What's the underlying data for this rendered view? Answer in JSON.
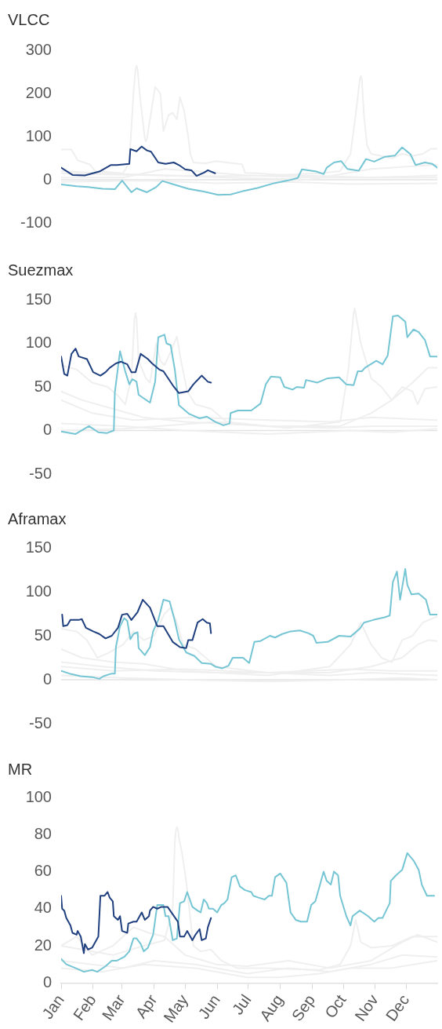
{
  "chart_data": [
    {
      "type": "line",
      "title": "VLCC",
      "xlim": [
        "--01-01",
        "--12-31"
      ],
      "ylim": [
        -100,
        300
      ],
      "yticks": [
        -100,
        0,
        100,
        200,
        300
      ],
      "tick_labels": "y",
      "ref_lines": [
        {
          "axis": "y",
          "value": 0,
          "color": "#e3e3e3"
        }
      ],
      "grid": false,
      "legend": false,
      "marker": "none",
      "series": [
        {
          "color": "#efefef",
          "x": [
            "--01-01",
            "--01-11",
            "--01-17",
            "--01-29",
            "--02-03",
            "--03-02",
            "--03-08",
            "--03-12",
            "--03-14",
            "--03-15",
            "--03-16",
            "--03-18",
            "--03-23",
            "--03-24",
            "--03-25",
            "--03-30",
            "--04-02",
            "--04-07",
            "--04-10",
            "--04-15",
            "--04-19",
            "--04-23",
            "--04-26",
            "--04-30",
            "--05-04",
            "--05-06",
            "--05-09",
            "--05-21",
            "--05-31",
            "--06-10",
            "--06-25",
            "--06-28",
            "--07-10",
            "--08-09",
            "--09-18",
            "--10-28",
            "--12-31"
          ],
          "values": [
            70,
            70,
            45,
            35,
            20,
            15,
            40,
            200,
            255,
            264,
            256,
            200,
            95,
            89,
            95,
            170,
            215,
            200,
            113,
            150,
            155,
            140,
            191,
            160,
            100,
            60,
            40,
            38,
            43,
            40,
            36,
            16,
            15,
            10,
            8,
            5,
            5
          ]
        },
        {
          "color": "#efefef",
          "x": [
            "--01-01",
            "--02-20",
            "--04-11",
            "--05-31",
            "--07-20",
            "--09-08",
            "--09-28",
            "--10-08",
            "--10-13",
            "--10-17",
            "--10-18",
            "--10-19",
            "--10-21",
            "--10-24",
            "--10-28",
            "--11-07",
            "--11-17",
            "--11-27",
            "--12-07",
            "--12-17",
            "--12-25",
            "--12-31"
          ],
          "values": [
            15,
            12,
            10,
            8,
            10,
            15,
            20,
            60,
            150,
            232,
            240,
            232,
            150,
            80,
            60,
            55,
            50,
            60,
            55,
            60,
            72,
            72
          ]
        },
        {
          "color": "#efefef",
          "x": [
            "--01-01",
            "--03-02",
            "--04-11",
            "--05-11",
            "--06-30",
            "--08-29",
            "--10-28",
            "--12-31"
          ],
          "values": [
            5,
            5,
            25,
            20,
            10,
            5,
            5,
            10
          ]
        },
        {
          "color": "#efefef",
          "x": [
            "--01-01",
            "--03-22",
            "--05-31",
            "--08-09",
            "--10-08",
            "--12-31"
          ],
          "values": [
            -5,
            -2,
            -8,
            -5,
            -10,
            -8
          ]
        },
        {
          "color": "#efefef",
          "x": [
            "--01-01",
            "--02-10",
            "--04-11",
            "--06-10",
            "--08-29",
            "--10-28",
            "--12-31"
          ],
          "values": [
            20,
            15,
            10,
            5,
            0,
            25,
            35
          ]
        },
        {
          "color": "#75c5d4",
          "x": [
            "--01-01",
            "--01-16",
            "--01-27",
            "--02-10",
            "--02-22",
            "--03-01",
            "--03-10",
            "--03-15",
            "--03-25",
            "--04-03",
            "--04-09",
            "--04-20",
            "--05-04",
            "--05-18",
            "--06-02",
            "--06-14",
            "--06-25",
            "--07-10",
            "--07-26",
            "--08-08",
            "--08-18",
            "--08-22",
            "--09-05",
            "--09-12",
            "--09-15",
            "--09-22",
            "--09-29",
            "--10-05",
            "--10-16",
            "--10-23",
            "--10-31",
            "--11-10",
            "--11-20",
            "--11-27",
            "--12-05",
            "--12-10",
            "--12-19",
            "--12-26",
            "--12-31"
          ],
          "values": [
            -11,
            -15,
            -17,
            -21,
            -22,
            -2,
            -29,
            -20,
            -29,
            -17,
            -3,
            -11,
            -21,
            -27,
            -35,
            -34,
            -27,
            -19,
            -8,
            -2,
            4,
            24,
            19,
            13,
            28,
            40,
            43,
            25,
            21,
            48,
            42,
            53,
            56,
            75,
            59,
            34,
            40,
            37,
            28
          ]
        },
        {
          "color": "#1f3f7f",
          "x": [
            "--01-01",
            "--01-12",
            "--01-24",
            "--02-07",
            "--02-18",
            "--02-24",
            "--03-08",
            "--03-09",
            "--03-15",
            "--03-19",
            "--03-20",
            "--03-21",
            "--03-25",
            "--03-29",
            "--04-05",
            "--04-12",
            "--04-20",
            "--04-25",
            "--05-01",
            "--05-07",
            "--05-12",
            "--05-19",
            "--05-23",
            "--05-30"
          ],
          "values": [
            28,
            11,
            10,
            19,
            34,
            34,
            37,
            71,
            66,
            75,
            77,
            75,
            68,
            65,
            40,
            37,
            40,
            34,
            24,
            22,
            9,
            16,
            22,
            15
          ]
        }
      ]
    },
    {
      "type": "line",
      "title": "Suezmax",
      "xlim": [
        "--01-01",
        "--12-31"
      ],
      "ylim": [
        -50,
        150
      ],
      "yticks": [
        -50,
        0,
        50,
        100,
        150
      ],
      "tick_labels": "y",
      "ref_lines": [
        {
          "axis": "y",
          "value": 0,
          "color": "#e3e3e3"
        }
      ],
      "grid": false,
      "legend": false,
      "marker": "none",
      "series": [
        {
          "color": "#efefef",
          "x": [
            "--01-01",
            "--01-16",
            "--01-31",
            "--02-15",
            "--02-25",
            "--03-04",
            "--03-10",
            "--03-13",
            "--03-14",
            "--03-15",
            "--03-17",
            "--03-24",
            "--03-28",
            "--04-03",
            "--04-07",
            "--04-11",
            "--04-17",
            "--04-23",
            "--04-27",
            "--05-03",
            "--05-11",
            "--05-26",
            "--06-10",
            "--07-20",
            "--09-18",
            "--10-28",
            "--12-31"
          ],
          "values": [
            75,
            70,
            55,
            50,
            40,
            30,
            60,
            128,
            135,
            128,
            80,
            60,
            55,
            100,
            80,
            75,
            90,
            108,
            80,
            45,
            30,
            25,
            10,
            5,
            3,
            5,
            5
          ]
        },
        {
          "color": "#efefef",
          "x": [
            "--01-01",
            "--03-02",
            "--05-31",
            "--08-09",
            "--09-28",
            "--10-06",
            "--10-11",
            "--10-12",
            "--10-13",
            "--10-18",
            "--10-28",
            "--11-07",
            "--11-17",
            "--11-27",
            "--12-07",
            "--12-12",
            "--12-19",
            "--12-31"
          ],
          "values": [
            0,
            2,
            10,
            3,
            10,
            70,
            134,
            140,
            134,
            100,
            60,
            50,
            35,
            50,
            45,
            30,
            48,
            50
          ]
        },
        {
          "color": "#efefef",
          "x": [
            "--01-01",
            "--01-21",
            "--02-20",
            "--03-22",
            "--05-01",
            "--07-20",
            "--09-28",
            "--10-28",
            "--11-17",
            "--12-07",
            "--12-22",
            "--12-31"
          ],
          "values": [
            45,
            35,
            25,
            15,
            10,
            5,
            5,
            20,
            35,
            55,
            72,
            72
          ]
        },
        {
          "color": "#efefef",
          "x": [
            "--01-01",
            "--01-31",
            "--03-12",
            "--05-11",
            "--07-20",
            "--09-18",
            "--10-28",
            "--12-31"
          ],
          "values": [
            35,
            20,
            12,
            15,
            12,
            10,
            15,
            12
          ]
        },
        {
          "color": "#efefef",
          "x": [
            "--01-01",
            "--03-02",
            "--05-01",
            "--07-20",
            "--10-08",
            "--11-17",
            "--12-31"
          ],
          "values": [
            8,
            5,
            0,
            -4,
            0,
            -2,
            2
          ]
        },
        {
          "color": "#75c5d4",
          "x": [
            "--01-01",
            "--01-15",
            "--01-28",
            "--02-06",
            "--02-14",
            "--02-21",
            "--02-22",
            "--02-27",
            "--03-04",
            "--03-08",
            "--03-11",
            "--03-15",
            "--03-17",
            "--03-28",
            "--04-02",
            "--04-05",
            "--04-11",
            "--04-13",
            "--04-17",
            "--04-21",
            "--04-25",
            "--05-05",
            "--05-15",
            "--05-22",
            "--05-30",
            "--06-07",
            "--06-13",
            "--06-14",
            "--06-21",
            "--07-04",
            "--07-13",
            "--07-18",
            "--07-23",
            "--08-01",
            "--08-05",
            "--08-13",
            "--08-17",
            "--08-24",
            "--08-26",
            "--09-06",
            "--09-16",
            "--09-27",
            "--10-04",
            "--10-11",
            "--10-15",
            "--10-19",
            "--10-22",
            "--11-02",
            "--11-08",
            "--11-13",
            "--11-18",
            "--11-23",
            "--11-30",
            "--12-02",
            "--12-08",
            "--12-13",
            "--12-19",
            "--12-24",
            "--12-31"
          ],
          "values": [
            -1,
            -4,
            5,
            -2,
            -3,
            0,
            44,
            91,
            68,
            53,
            59,
            56,
            41,
            32,
            56,
            107,
            110,
            100,
            98,
            70,
            29,
            19,
            14,
            16,
            10,
            6,
            8,
            20,
            23,
            23,
            31,
            53,
            62,
            61,
            50,
            47,
            50,
            49,
            58,
            55,
            60,
            61,
            53,
            52,
            68,
            68,
            72,
            80,
            76,
            86,
            131,
            132,
            125,
            107,
            116,
            113,
            104,
            85,
            85
          ]
        },
        {
          "color": "#1f3f7f",
          "x": [
            "--01-01",
            "--01-04",
            "--01-07",
            "--01-11",
            "--01-15",
            "--01-18",
            "--01-26",
            "--02-01",
            "--02-08",
            "--02-13",
            "--02-17",
            "--02-23",
            "--02-28",
            "--03-06",
            "--03-10",
            "--03-14",
            "--03-19",
            "--03-26",
            "--03-30",
            "--04-06",
            "--04-10",
            "--04-19",
            "--04-25",
            "--05-04",
            "--05-09",
            "--05-17",
            "--05-23",
            "--05-26"
          ],
          "values": [
            85,
            65,
            63,
            88,
            94,
            85,
            82,
            67,
            63,
            67,
            72,
            77,
            79,
            76,
            67,
            67,
            88,
            82,
            77,
            70,
            68,
            52,
            43,
            45,
            53,
            63,
            56,
            55
          ]
        }
      ]
    },
    {
      "type": "line",
      "title": "Aframax",
      "xlim": [
        "--01-01",
        "--12-31"
      ],
      "ylim": [
        -50,
        150
      ],
      "yticks": [
        -50,
        0,
        50,
        100,
        150
      ],
      "tick_labels": "y",
      "ref_lines": [
        {
          "axis": "y",
          "value": 0,
          "color": "#e3e3e3"
        }
      ],
      "grid": false,
      "legend": false,
      "marker": "none",
      "series": [
        {
          "color": "#efefef",
          "x": [
            "--01-01",
            "--01-16",
            "--01-26",
            "--02-05",
            "--02-15",
            "--03-02",
            "--03-12",
            "--03-22",
            "--04-01",
            "--04-11",
            "--04-17",
            "--04-23",
            "--04-29",
            "--05-11",
            "--05-21",
            "--05-31",
            "--07-20",
            "--09-18",
            "--10-28",
            "--12-31"
          ],
          "values": [
            58,
            55,
            45,
            25,
            30,
            40,
            55,
            45,
            50,
            75,
            82,
            65,
            40,
            35,
            25,
            15,
            8,
            5,
            8,
            5
          ]
        },
        {
          "color": "#efefef",
          "x": [
            "--01-01",
            "--01-21",
            "--02-20",
            "--03-22",
            "--05-01",
            "--07-20",
            "--09-18",
            "--10-08",
            "--10-18",
            "--10-28",
            "--11-07",
            "--11-17",
            "--11-27",
            "--12-07",
            "--12-17",
            "--12-31"
          ],
          "values": [
            35,
            25,
            20,
            18,
            10,
            5,
            15,
            40,
            65,
            40,
            25,
            20,
            45,
            50,
            65,
            72
          ]
        },
        {
          "color": "#efefef",
          "x": [
            "--01-01",
            "--02-10",
            "--04-01",
            "--05-31",
            "--09-18",
            "--10-28",
            "--11-27",
            "--12-12",
            "--12-22",
            "--12-31"
          ],
          "values": [
            20,
            15,
            10,
            8,
            8,
            15,
            25,
            40,
            45,
            44
          ]
        },
        {
          "color": "#efefef",
          "x": [
            "--01-01",
            "--03-02",
            "--05-01",
            "--07-20",
            "--10-08",
            "--11-27",
            "--12-31"
          ],
          "values": [
            5,
            2,
            0,
            -2,
            0,
            2,
            0
          ]
        },
        {
          "color": "#efefef",
          "x": [
            "--01-01",
            "--02-20",
            "--05-01",
            "--07-20",
            "--10-08",
            "--11-17",
            "--12-31"
          ],
          "values": [
            15,
            10,
            12,
            8,
            12,
            10,
            10
          ]
        },
        {
          "color": "#75c5d4",
          "x": [
            "--01-01",
            "--01-09",
            "--01-20",
            "--01-31",
            "--02-07",
            "--02-11",
            "--02-19",
            "--02-22",
            "--02-23",
            "--02-27",
            "--03-03",
            "--03-06",
            "--03-09",
            "--03-12",
            "--03-16",
            "--03-17",
            "--03-23",
            "--03-28",
            "--03-31",
            "--04-05",
            "--04-10",
            "--04-16",
            "--04-21",
            "--04-25",
            "--05-02",
            "--05-10",
            "--05-17",
            "--05-26",
            "--05-30",
            "--06-06",
            "--06-12",
            "--06-16",
            "--06-26",
            "--07-02",
            "--07-07",
            "--07-13",
            "--07-22",
            "--07-27",
            "--08-03",
            "--08-11",
            "--08-20",
            "--08-28",
            "--09-02",
            "--09-05",
            "--09-16",
            "--09-27",
            "--10-08",
            "--10-17",
            "--10-21",
            "--10-30",
            "--11-10",
            "--11-15",
            "--11-18",
            "--11-22",
            "--11-25",
            "--11-30",
            "--12-02",
            "--12-06",
            "--12-13",
            "--12-20",
            "--12-24",
            "--12-31"
          ],
          "values": [
            10,
            7,
            4,
            3,
            1,
            4,
            7,
            7,
            37,
            61,
            70,
            67,
            46,
            52,
            54,
            36,
            28,
            37,
            55,
            68,
            91,
            89,
            67,
            46,
            31,
            27,
            19,
            18,
            15,
            13,
            16,
            25,
            25,
            19,
            43,
            44,
            50,
            48,
            52,
            55,
            56,
            53,
            50,
            42,
            43,
            50,
            49,
            58,
            65,
            68,
            71,
            73,
            111,
            123,
            91,
            126,
            108,
            97,
            98,
            91,
            74,
            74
          ]
        },
        {
          "color": "#1f3f7f",
          "x": [
            "--01-02",
            "--01-03",
            "--01-07",
            "--01-10",
            "--01-18",
            "--01-21",
            "--01-25",
            "--02-01",
            "--02-07",
            "--02-13",
            "--02-19",
            "--02-25",
            "--03-01",
            "--03-06",
            "--03-10",
            "--03-16",
            "--03-21",
            "--03-28",
            "--04-03",
            "--04-04",
            "--04-10",
            "--04-19",
            "--04-26",
            "--05-02",
            "--05-04",
            "--05-08",
            "--05-13",
            "--05-18",
            "--05-22",
            "--05-25",
            "--05-26"
          ],
          "values": [
            74,
            61,
            62,
            68,
            68,
            69,
            59,
            55,
            52,
            47,
            50,
            59,
            74,
            75,
            68,
            77,
            91,
            82,
            64,
            61,
            61,
            43,
            37,
            36,
            45,
            45,
            65,
            69,
            65,
            64,
            53
          ]
        }
      ]
    },
    {
      "type": "line",
      "title": "MR",
      "xlim": [
        "--01-01",
        "--12-31"
      ],
      "ylim": [
        0,
        100
      ],
      "yticks": [
        0,
        20,
        40,
        60,
        80,
        100
      ],
      "xticks": [
        {
          "value": "--01-01",
          "label": "Jan"
        },
        {
          "value": "--02-01",
          "label": "Feb"
        },
        {
          "value": "--03-01",
          "label": "Mar"
        },
        {
          "value": "--04-01",
          "label": "Apr"
        },
        {
          "value": "--05-01",
          "label": "May"
        },
        {
          "value": "--06-01",
          "label": "Jun"
        },
        {
          "value": "--07-01",
          "label": "Jul"
        },
        {
          "value": "--08-01",
          "label": "Aug"
        },
        {
          "value": "--09-01",
          "label": "Sep"
        },
        {
          "value": "--10-01",
          "label": "Oct"
        },
        {
          "value": "--11-01",
          "label": "Nov"
        },
        {
          "value": "--12-01",
          "label": "Dec"
        }
      ],
      "grid": false,
      "legend": false,
      "marker": "none",
      "series": [
        {
          "color": "#efefef",
          "x": [
            "--01-01",
            "--01-21",
            "--02-20",
            "--03-22",
            "--04-11",
            "--04-19",
            "--04-21",
            "--04-22",
            "--04-23",
            "--04-24",
            "--04-25",
            "--04-28",
            "--05-02",
            "--05-05",
            "--05-09",
            "--05-16",
            "--05-26",
            "--06-05",
            "--06-20",
            "--07-20",
            "--09-08",
            "--09-28",
            "--10-08",
            "--10-13",
            "--10-18",
            "--10-28",
            "--11-17",
            "--12-07",
            "--12-31"
          ],
          "values": [
            20,
            18,
            15,
            20,
            23,
            40,
            76,
            82,
            84,
            83,
            78,
            70,
            55,
            40,
            20,
            17,
            18,
            12,
            8,
            8,
            7,
            10,
            20,
            34,
            22,
            19,
            20,
            25,
            25
          ]
        },
        {
          "color": "#efefef",
          "x": [
            "--01-01",
            "--01-16",
            "--01-31",
            "--02-20",
            "--03-12",
            "--03-27",
            "--04-11",
            "--05-01",
            "--05-31",
            "--06-30",
            "--08-09",
            "--09-18",
            "--10-28",
            "--11-27",
            "--12-12",
            "--12-31"
          ],
          "values": [
            20,
            25,
            15,
            20,
            30,
            27,
            25,
            15,
            10,
            9,
            12,
            8,
            12,
            22,
            26,
            22
          ]
        },
        {
          "color": "#efefef",
          "x": [
            "--01-01",
            "--01-31",
            "--03-02",
            "--04-01",
            "--05-11",
            "--06-30",
            "--08-09",
            "--09-18",
            "--10-28",
            "--11-27",
            "--12-31"
          ],
          "values": [
            12,
            10,
            8,
            12,
            10,
            5,
            8,
            6,
            10,
            15,
            14
          ]
        },
        {
          "color": "#efefef",
          "x": [
            "--01-01",
            "--02-10",
            "--03-22",
            "--05-11",
            "--06-30",
            "--07-30",
            "--09-08",
            "--10-08",
            "--11-17",
            "--12-31"
          ],
          "values": [
            8,
            6,
            10,
            8,
            3,
            3,
            5,
            8,
            8,
            12
          ]
        },
        {
          "color": "#75c5d4",
          "x": [
            "--01-01",
            "--01-06",
            "--01-15",
            "--01-23",
            "--01-31",
            "--02-05",
            "--02-13",
            "--02-19",
            "--02-24",
            "--03-03",
            "--03-08",
            "--03-12",
            "--03-15",
            "--03-19",
            "--03-22",
            "--03-26",
            "--03-31",
            "--04-04",
            "--04-10",
            "--04-12",
            "--04-15",
            "--04-19",
            "--04-23",
            "--04-26",
            "--04-30",
            "--05-03",
            "--05-08",
            "--05-13",
            "--05-16",
            "--05-19",
            "--05-22",
            "--05-24",
            "--05-28",
            "--06-01",
            "--06-05",
            "--06-08",
            "--06-11",
            "--06-15",
            "--06-19",
            "--06-23",
            "--06-28",
            "--07-04",
            "--07-06",
            "--07-11",
            "--07-17",
            "--07-21",
            "--07-24",
            "--07-27",
            "--08-01",
            "--08-07",
            "--08-11",
            "--08-16",
            "--08-21",
            "--08-27",
            "--08-31",
            "--09-04",
            "--09-08",
            "--09-12",
            "--09-15",
            "--09-19",
            "--09-22",
            "--09-26",
            "--09-28",
            "--10-04",
            "--10-08",
            "--10-10",
            "--10-17",
            "--10-25",
            "--10-31",
            "--11-04",
            "--11-08",
            "--11-15",
            "--11-16",
            "--11-21",
            "--11-27",
            "--12-02",
            "--12-08",
            "--12-13",
            "--12-16",
            "--12-21",
            "--12-28"
          ],
          "values": [
            13,
            10,
            8,
            6,
            7,
            6,
            9,
            12,
            12,
            14,
            17,
            24,
            24,
            21,
            17,
            19,
            26,
            42,
            42,
            36,
            36,
            23,
            24,
            43,
            44,
            49,
            41,
            39,
            38,
            45,
            43,
            40,
            40,
            38,
            42,
            43,
            45,
            57,
            58,
            52,
            50,
            49,
            47,
            46,
            45,
            47,
            47,
            57,
            59,
            54,
            38,
            34,
            33,
            33,
            42,
            44,
            52,
            60,
            55,
            53,
            60,
            58,
            47,
            36,
            31,
            36,
            39,
            36,
            33,
            35,
            35,
            43,
            55,
            58,
            61,
            70,
            66,
            61,
            53,
            47,
            47
          ]
        },
        {
          "color": "#1f3f7f",
          "x": [
            "--01-01",
            "--01-02",
            "--01-04",
            "--01-06",
            "--01-10",
            "--01-12",
            "--01-16",
            "--01-17",
            "--01-20",
            "--01-23",
            "--01-24",
            "--01-27",
            "--01-31",
            "--02-04",
            "--02-06",
            "--02-08",
            "--02-12",
            "--02-15",
            "--02-17",
            "--02-20",
            "--02-21",
            "--02-25",
            "--02-27",
            "--03-01",
            "--03-06",
            "--03-07",
            "--03-12",
            "--03-15",
            "--03-16",
            "--03-20",
            "--03-23",
            "--03-27",
            "--03-28",
            "--03-31",
            "--04-04",
            "--04-08",
            "--04-14",
            "--04-19",
            "--04-24",
            "--04-26",
            "--04-30",
            "--05-03",
            "--05-05",
            "--05-08",
            "--05-11",
            "--05-15",
            "--05-17",
            "--05-21",
            "--05-23",
            "--05-26"
          ],
          "values": [
            47,
            40,
            39,
            35,
            31,
            27,
            26,
            28,
            25,
            16,
            21,
            18,
            19,
            23,
            25,
            47,
            47,
            49,
            46,
            44,
            36,
            34,
            36,
            28,
            27,
            32,
            33,
            33,
            34,
            38,
            34,
            36,
            39,
            41,
            40,
            41,
            41,
            37,
            33,
            25,
            25,
            28,
            26,
            23,
            26,
            29,
            23,
            24,
            30,
            35
          ]
        }
      ]
    }
  ]
}
